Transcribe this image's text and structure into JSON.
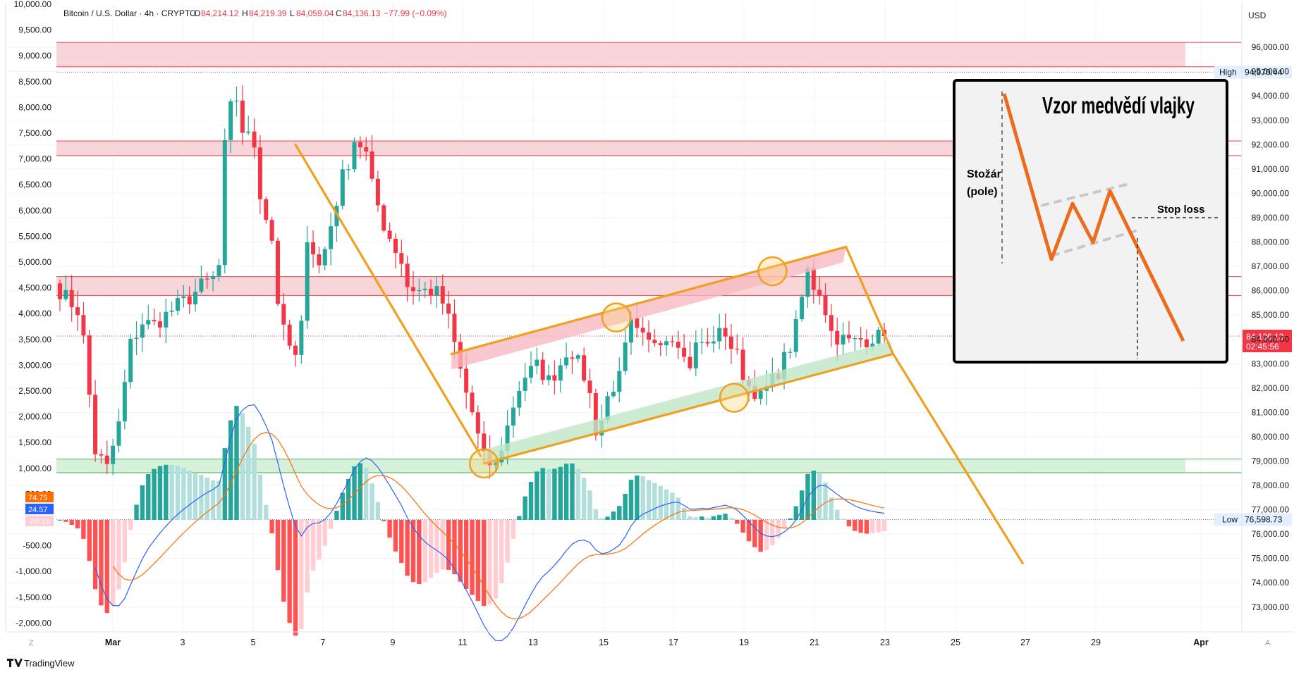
{
  "header": {
    "symbol": "Bitcoin / U.S. Dollar · 4h · CRYPTO",
    "open_label": "O",
    "open": "84,214.12",
    "high_label": "H",
    "high": "84,219.39",
    "low_label": "L",
    "low": "84,059.04",
    "close_label": "C",
    "close": "84,136.13",
    "change": "−77.99 (−0.09%)"
  },
  "currency": "USD",
  "branding": "TradingView",
  "scale_mode_left": "Z",
  "scale_mode_right": "A",
  "colors": {
    "up": "#26a69a",
    "down": "#f23645",
    "resistance_zone": "#f8d5d8",
    "support_zone": "#d7f0d9",
    "pattern": "#f0a020",
    "annotation_line": "#ee6a1c",
    "macd_line": "#2962ff",
    "signal_line": "#ff6d00"
  },
  "chart_data": {
    "type": "candlestick",
    "price_axis": {
      "ticks": [
        "73,000.00",
        "74,000.00",
        "75,000.00",
        "76,000.00",
        "77,000.00",
        "78,000.00",
        "79,000.00",
        "80,000.00",
        "81,000.00",
        "82,000.00",
        "83,000.00",
        "84,000.00",
        "85,000.00",
        "86,000.00",
        "87,000.00",
        "88,000.00",
        "89,000.00",
        "90,000.00",
        "91,000.00",
        "92,000.00",
        "93,000.00",
        "94,000.00",
        "95,000.00",
        "96,000.00"
      ],
      "range": [
        72300,
        97700
      ]
    },
    "macd_axis": {
      "ticks": [
        "10,000.00",
        "9,500.00",
        "9,000.00",
        "8,500.00",
        "8,000.00",
        "7,500.00",
        "7,000.00",
        "6,500.00",
        "6,000.00",
        "5,500.00",
        "5,000.00",
        "4,500.00",
        "4,000.00",
        "3,500.00",
        "3,000.00",
        "2,500.00",
        "2,000.00",
        "1,500.00",
        "1,000.00",
        "500.00",
        "-500.00",
        "-1,000.00",
        "-1,500.00",
        "-2,000.00"
      ],
      "macd_value": "74.75",
      "signal_value": "24.57",
      "histogram_value": "-50.18"
    },
    "time_axis": {
      "labels": [
        "Mar",
        "3",
        "5",
        "7",
        "9",
        "11",
        "13",
        "15",
        "17",
        "19",
        "21",
        "23",
        "25",
        "27",
        "29",
        "Apr"
      ]
    },
    "markers": {
      "high_label": "High",
      "high_value": "94,970.44",
      "high_price": 94970.44,
      "low_label": "Low",
      "low_value": "76,598.73",
      "low_price": 76598.73,
      "last_price": "84,136.13",
      "last_price_value": 84136.13,
      "countdown": "02:45:56"
    },
    "zones": [
      {
        "kind": "resistance",
        "from": 95200,
        "to": 96200
      },
      {
        "kind": "resistance",
        "from": 91550,
        "to": 92150
      },
      {
        "kind": "resistance",
        "from": 85800,
        "to": 86580
      },
      {
        "kind": "support",
        "from": 78520,
        "to": 79080
      }
    ],
    "candle_path": [
      [
        0,
        86000
      ],
      [
        3,
        85200
      ],
      [
        4,
        84000
      ],
      [
        6,
        79400
      ],
      [
        8,
        78700
      ],
      [
        10,
        80500
      ],
      [
        12,
        83800
      ],
      [
        14,
        84700
      ],
      [
        16,
        84600
      ],
      [
        18,
        85000
      ],
      [
        20,
        85400
      ],
      [
        22,
        85700
      ],
      [
        24,
        86200
      ],
      [
        26,
        86500
      ],
      [
        27,
        87000
      ],
      [
        28,
        91900
      ],
      [
        29,
        93500
      ],
      [
        30,
        93900
      ],
      [
        31,
        92600
      ],
      [
        32,
        92300
      ],
      [
        33,
        92000
      ],
      [
        34,
        90000
      ],
      [
        36,
        88100
      ],
      [
        37,
        85600
      ],
      [
        38,
        84300
      ],
      [
        39,
        83700
      ],
      [
        40,
        83200
      ],
      [
        41,
        84500
      ],
      [
        42,
        88300
      ],
      [
        44,
        87000
      ],
      [
        45,
        87700
      ],
      [
        46,
        88700
      ],
      [
        47,
        89700
      ],
      [
        48,
        90700
      ],
      [
        49,
        91300
      ],
      [
        50,
        92200
      ],
      [
        51,
        92000
      ],
      [
        52,
        91600
      ],
      [
        53,
        90300
      ],
      [
        54,
        89500
      ],
      [
        55,
        88700
      ],
      [
        56,
        88200
      ],
      [
        58,
        87200
      ],
      [
        59,
        86200
      ],
      [
        60,
        86100
      ],
      [
        61,
        86000
      ],
      [
        62,
        86000
      ],
      [
        63,
        86000
      ],
      [
        64,
        85900
      ],
      [
        65,
        85500
      ],
      [
        66,
        84800
      ],
      [
        67,
        83800
      ],
      [
        68,
        82700
      ],
      [
        69,
        81800
      ],
      [
        70,
        81000
      ],
      [
        71,
        80000
      ],
      [
        72,
        79100
      ],
      [
        73,
        78900
      ],
      [
        74,
        78800
      ],
      [
        75,
        79600
      ],
      [
        76,
        80400
      ],
      [
        77,
        81300
      ],
      [
        78,
        82000
      ],
      [
        79,
        82500
      ],
      [
        80,
        82700
      ],
      [
        81,
        82900
      ],
      [
        82,
        82600
      ],
      [
        83,
        82300
      ],
      [
        84,
        82600
      ],
      [
        85,
        83000
      ],
      [
        86,
        83500
      ],
      [
        87,
        83500
      ],
      [
        88,
        83000
      ],
      [
        89,
        82500
      ],
      [
        90,
        81700
      ],
      [
        91,
        80300
      ],
      [
        92,
        80700
      ],
      [
        93,
        81600
      ],
      [
        94,
        82100
      ],
      [
        95,
        82400
      ],
      [
        96,
        83600
      ],
      [
        97,
        84600
      ],
      [
        98,
        84200
      ],
      [
        99,
        84000
      ],
      [
        100,
        83800
      ],
      [
        101,
        84000
      ],
      [
        102,
        84100
      ],
      [
        103,
        84100
      ],
      [
        104,
        84200
      ],
      [
        105,
        84000
      ],
      [
        106,
        83200
      ],
      [
        107,
        83000
      ],
      [
        108,
        83700
      ],
      [
        109,
        83900
      ],
      [
        110,
        83700
      ],
      [
        111,
        84100
      ],
      [
        112,
        84200
      ],
      [
        113,
        84300
      ],
      [
        114,
        83700
      ],
      [
        115,
        83300
      ],
      [
        116,
        82600
      ],
      [
        117,
        82100
      ],
      [
        118,
        81900
      ],
      [
        119,
        81600
      ],
      [
        120,
        82000
      ],
      [
        121,
        82300
      ],
      [
        122,
        82700
      ],
      [
        123,
        83200
      ],
      [
        124,
        83700
      ],
      [
        125,
        84500
      ],
      [
        126,
        85700
      ],
      [
        127,
        86800
      ],
      [
        128,
        86200
      ],
      [
        129,
        86000
      ],
      [
        130,
        85200
      ],
      [
        131,
        84300
      ],
      [
        132,
        84100
      ],
      [
        133,
        84000
      ],
      [
        134,
        83900
      ],
      [
        135,
        83900
      ],
      [
        136,
        84000
      ],
      [
        137,
        84000
      ],
      [
        138,
        84100
      ],
      [
        139,
        84100
      ],
      [
        140,
        84136
      ]
    ],
    "pattern_lines": [
      {
        "name": "pole",
        "from": [
          40,
          92000
        ],
        "to": [
          71.5,
          79200
        ]
      },
      {
        "name": "flag_upper",
        "from": [
          66.5,
          83400
        ],
        "to": [
          133.5,
          87800
        ]
      },
      {
        "name": "flag_lower",
        "from": [
          72,
          78900
        ],
        "to": [
          141.5,
          83400
        ]
      },
      {
        "name": "flag_right",
        "from": [
          133.5,
          87800
        ],
        "to": [
          141.5,
          83400
        ]
      },
      {
        "name": "projection",
        "from": [
          141.5,
          83400
        ],
        "to": [
          163.5,
          74800
        ]
      }
    ],
    "touch_points": [
      [
        72,
        78900
      ],
      [
        94.5,
        84900
      ],
      [
        114.5,
        81600
      ],
      [
        121,
        86800
      ]
    ]
  },
  "inset": {
    "title": "Vzor medvědí vlajky",
    "pole_label_1": "Stožár",
    "pole_label_2": "(pole)",
    "stop_loss_label": "Stop loss"
  }
}
